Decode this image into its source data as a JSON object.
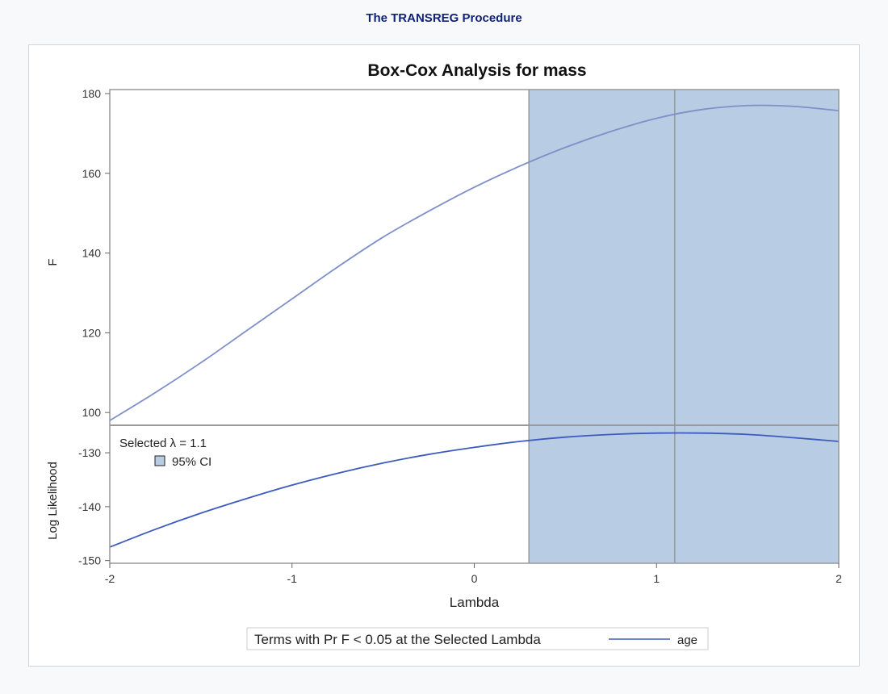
{
  "header": {
    "procedure_title": "The TRANSREG Procedure"
  },
  "colors": {
    "ci_fill": "#b8cce4",
    "curve_f": "#7f8fc8",
    "curve_ll": "#3d5bbf",
    "ref_line": "#999999",
    "frame": "#999999"
  },
  "chart_data": {
    "type": "line",
    "title": "Box-Cox Analysis for mass",
    "xlabel": "Lambda",
    "xlim": [
      -2,
      2
    ],
    "x_ticks": [
      "-2",
      "-1",
      "0",
      "1",
      "2"
    ],
    "selected_lambda": 1.1,
    "ci": [
      0.3,
      2.0
    ],
    "panels": [
      {
        "ylabel": "F",
        "ylim": [
          96.8,
          181
        ],
        "y_ticks": [
          "100",
          "120",
          "140",
          "160",
          "180"
        ],
        "series": [
          {
            "x": [
              -2,
              -1.75,
              -1.5,
              -1.25,
              -1,
              -0.75,
              -0.5,
              -0.25,
              0,
              0.25,
              0.5,
              0.75,
              1,
              1.25,
              1.5,
              1.75,
              2
            ],
            "values": [
              98,
              105,
              112.5,
              120.5,
              128.5,
              136.5,
              144,
              150.5,
              156.5,
              161.8,
              166.5,
              170.5,
              173.8,
              176,
              177,
              176.8,
              175.7
            ]
          }
        ]
      },
      {
        "ylabel": "Log Likelihood",
        "ylim": [
          -150.5,
          -124.9
        ],
        "y_ticks": [
          "-130",
          "-140",
          "-150"
        ],
        "series": [
          {
            "x": [
              -2,
              -1.75,
              -1.5,
              -1.25,
              -1,
              -0.75,
              -0.5,
              -0.25,
              0,
              0.25,
              0.5,
              0.75,
              1,
              1.25,
              1.5,
              1.75,
              2
            ],
            "values": [
              -147.5,
              -144.2,
              -141.2,
              -138.5,
              -136,
              -133.8,
              -131.9,
              -130.3,
              -129,
              -127.9,
              -127.1,
              -126.6,
              -126.35,
              -126.35,
              -126.6,
              -127.2,
              -127.9
            ]
          }
        ]
      }
    ],
    "inset": {
      "selected_label": "Selected λ = 1.1",
      "ci_label": "95% CI"
    },
    "legend": {
      "title": "Terms with Pr F < 0.05 at the Selected Lambda",
      "items": [
        "age"
      ]
    }
  }
}
